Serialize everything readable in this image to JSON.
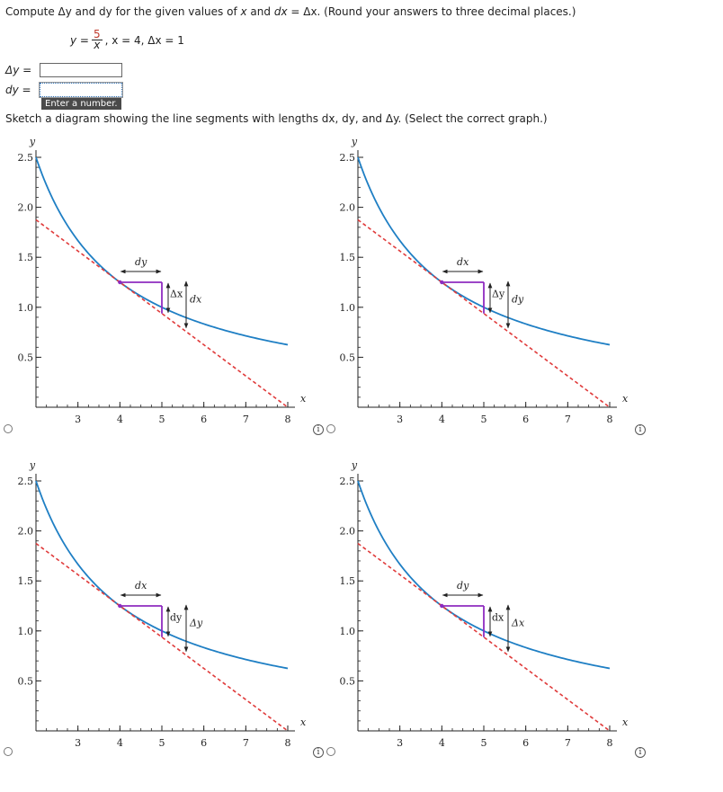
{
  "question": {
    "part1": "Compute Δy and dy for the given values of ",
    "x": "x",
    "part2": " and ",
    "dx": "dx",
    "part3": " = Δx. (Round your answers to three decimal places.)"
  },
  "given": {
    "y_label": "y =",
    "numerator": "5",
    "denominator": "x",
    "rest": ", x = 4,  Δx = 1"
  },
  "answers": {
    "delta_y_label": "Δy",
    "delta_y_value": "",
    "dy_label": "dy",
    "dy_value": "",
    "equals": "=",
    "tooltip": "Enter a number."
  },
  "instruction": "Sketch a diagram showing the line segments with lengths dx, dy, and Δy. (Select the correct graph.)",
  "chart_data": [
    {
      "type": "line",
      "id": "graph-1",
      "xlabel": "x",
      "ylabel": "y",
      "xlim": [
        2,
        8
      ],
      "ylim": [
        0,
        2.5
      ],
      "x_ticks": [
        "3",
        "4",
        "5",
        "6",
        "7",
        "8"
      ],
      "y_ticks": [
        "0.5",
        "1.0",
        "1.5",
        "2.0",
        "2.5"
      ],
      "series": [
        {
          "kind": "curve",
          "function": "y = 5/x",
          "domain": [
            2,
            8
          ],
          "color": "#1f7fc4"
        },
        {
          "kind": "tangent",
          "point": [
            4,
            1.25
          ],
          "slope": -0.3125,
          "color": "#e03b3b",
          "dashed": true
        }
      ],
      "labels": {
        "horizontal": "dy",
        "inner_vertical": "Δx",
        "outer_vertical": "dx"
      },
      "selected": false
    },
    {
      "type": "line",
      "id": "graph-2",
      "xlabel": "x",
      "ylabel": "y",
      "xlim": [
        2,
        8
      ],
      "ylim": [
        0,
        2.5
      ],
      "x_ticks": [
        "3",
        "4",
        "5",
        "6",
        "7",
        "8"
      ],
      "y_ticks": [
        "0.5",
        "1.0",
        "1.5",
        "2.0",
        "2.5"
      ],
      "series": [
        {
          "kind": "curve",
          "function": "y = 5/x",
          "domain": [
            2,
            8
          ],
          "color": "#1f7fc4"
        },
        {
          "kind": "tangent",
          "point": [
            4,
            1.25
          ],
          "slope": -0.3125,
          "color": "#e03b3b",
          "dashed": true
        }
      ],
      "labels": {
        "horizontal": "dx",
        "inner_vertical": "Δy",
        "outer_vertical": "dy"
      },
      "selected": false
    },
    {
      "type": "line",
      "id": "graph-3",
      "xlabel": "x",
      "ylabel": "y",
      "xlim": [
        2,
        8
      ],
      "ylim": [
        0,
        2.5
      ],
      "x_ticks": [
        "3",
        "4",
        "5",
        "6",
        "7",
        "8"
      ],
      "y_ticks": [
        "0.5",
        "1.0",
        "1.5",
        "2.0",
        "2.5"
      ],
      "series": [
        {
          "kind": "curve",
          "function": "y = 5/x",
          "domain": [
            2,
            8
          ],
          "color": "#1f7fc4"
        },
        {
          "kind": "tangent",
          "point": [
            4,
            1.25
          ],
          "slope": -0.3125,
          "color": "#e03b3b",
          "dashed": true
        }
      ],
      "labels": {
        "horizontal": "dx",
        "inner_vertical": "dy",
        "outer_vertical": "Δy"
      },
      "selected": false
    },
    {
      "type": "line",
      "id": "graph-4",
      "xlabel": "x",
      "ylabel": "y",
      "xlim": [
        2,
        8
      ],
      "ylim": [
        0,
        2.5
      ],
      "x_ticks": [
        "3",
        "4",
        "5",
        "6",
        "7",
        "8"
      ],
      "y_ticks": [
        "0.5",
        "1.0",
        "1.5",
        "2.0",
        "2.5"
      ],
      "series": [
        {
          "kind": "curve",
          "function": "y = 5/x",
          "domain": [
            2,
            8
          ],
          "color": "#1f7fc4"
        },
        {
          "kind": "tangent",
          "point": [
            4,
            1.25
          ],
          "slope": -0.3125,
          "color": "#e03b3b",
          "dashed": true
        }
      ],
      "labels": {
        "horizontal": "dy",
        "inner_vertical": "dx",
        "outer_vertical": "Δx"
      },
      "selected": false
    }
  ],
  "colors": {
    "curve": "#1f7fc4",
    "tangent": "#e03b3b",
    "triangle": "#8e2bbf",
    "axis": "#222222"
  },
  "icons": {
    "radio": "radio-button-icon",
    "info": "info-icon"
  }
}
